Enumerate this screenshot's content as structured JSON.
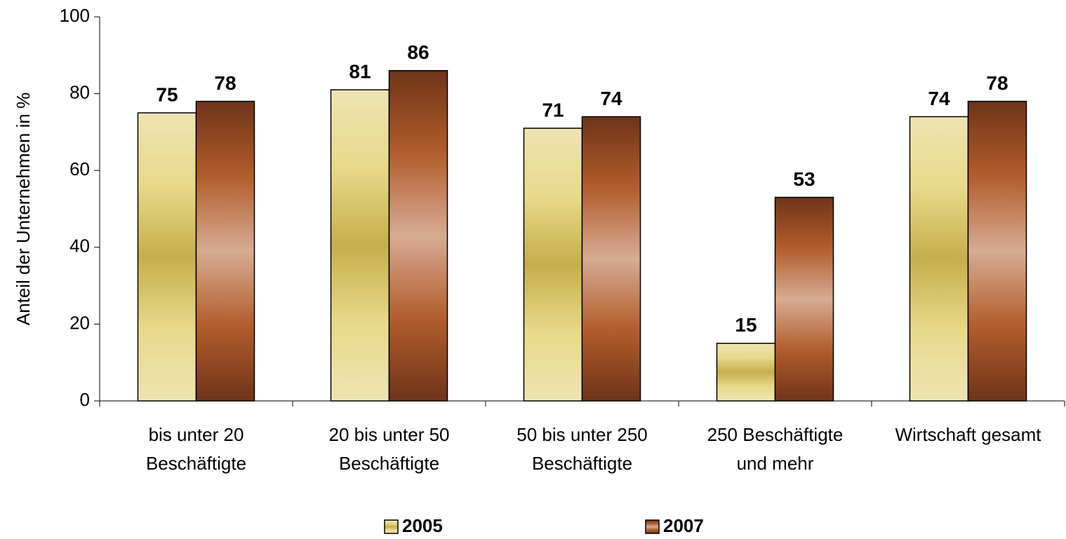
{
  "chart_data": {
    "type": "bar",
    "ylabel": "Anteil der Unternehmen in %",
    "categories": [
      [
        "bis unter 20",
        "Beschäftigte"
      ],
      [
        "20 bis unter 50",
        "Beschäftigte"
      ],
      [
        "50 bis unter 250",
        "Beschäftigte"
      ],
      [
        "250 Beschäftigte",
        "und mehr"
      ],
      [
        "Wirtschaft gesamt"
      ]
    ],
    "series": [
      {
        "name": "2005",
        "gradient": [
          "#efe3b2",
          "#e8d98a",
          "#c6ae4c",
          "#e8d98a",
          "#efe3b2"
        ],
        "values": [
          75,
          81,
          71,
          15,
          74
        ]
      },
      {
        "name": "2007",
        "gradient": [
          "#6e3419",
          "#b25d2c",
          "#d7ab93",
          "#b25d2c",
          "#6e3419"
        ],
        "values": [
          78,
          86,
          74,
          53,
          78
        ]
      }
    ],
    "ylim": [
      0,
      100
    ],
    "yticks": [
      0,
      20,
      40,
      60,
      80,
      100
    ],
    "grid": false,
    "legend": "bottom"
  }
}
